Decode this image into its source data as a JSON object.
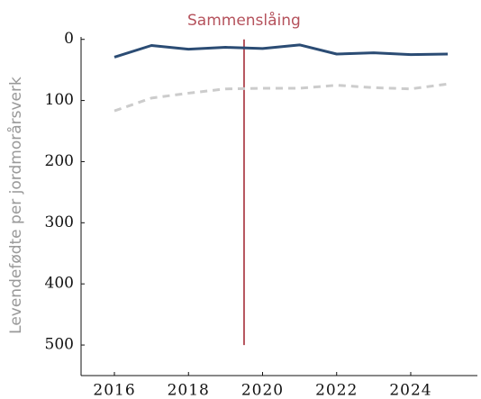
{
  "chart_data": {
    "type": "line",
    "y_label": "Levendefødte per jordmorårsverk",
    "x": [
      2016,
      2017,
      2018,
      2019,
      2020,
      2021,
      2022,
      2023,
      2024,
      2025
    ],
    "series": [
      {
        "color": "#2b4c74",
        "dash": false,
        "values": [
          29,
          10,
          16,
          13,
          15,
          9,
          24,
          22,
          25,
          24
        ]
      },
      {
        "color": "#cccccc",
        "dash": true,
        "values": [
          117,
          96,
          88,
          81,
          80,
          80,
          75,
          79,
          81,
          73
        ]
      }
    ],
    "annotations": [
      {
        "text": "Sammenslåing",
        "x": 2019.5,
        "y": [
          0,
          500
        ],
        "color": "#b5525c"
      }
    ],
    "xlim": [
      2015.1,
      2025.8
    ],
    "xticks": [
      2016,
      2018,
      2020,
      2022,
      2024
    ],
    "ylim": [
      -4,
      550
    ],
    "yticks": [
      0,
      100,
      200,
      300,
      400,
      500
    ],
    "y_inverted": true,
    "grid": false
  }
}
